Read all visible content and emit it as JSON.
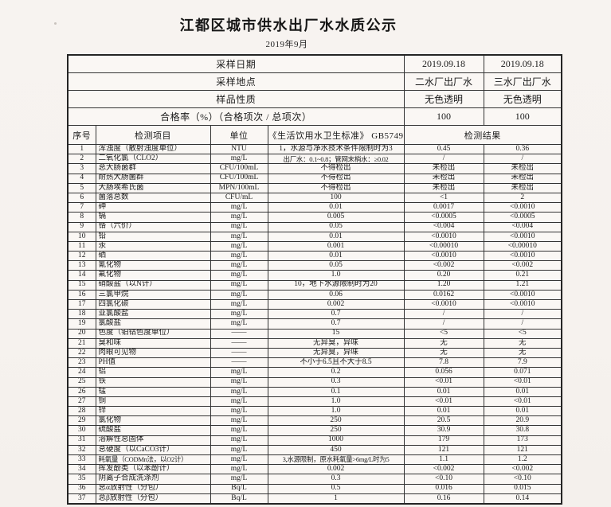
{
  "page": {
    "title": "江都区城市供水出厂水水质公示",
    "subtitle": "2019年9月"
  },
  "colors": {
    "paper": "#f6f2ee",
    "ink": "#1b1b1b",
    "border": "#343434"
  },
  "table": {
    "info_rows": [
      {
        "label": "采样日期",
        "plant2": "2019.09.18",
        "plant3": "2019.09.18"
      },
      {
        "label": "采样地点",
        "plant2": "二水厂出厂水",
        "plant3": "三水厂出厂水"
      },
      {
        "label": "样品性质",
        "plant2": "无色透明",
        "plant3": "无色透明"
      },
      {
        "label": "合格率（%）（合格项次 / 总项次）",
        "plant2": "100",
        "plant3": "100"
      }
    ],
    "columns": {
      "index": "序号",
      "item": "检测项目",
      "unit": "单位",
      "standard": "《生活饮用水卫生标准》 GB5749",
      "result": "检测结果"
    },
    "rows": [
      [
        "1",
        "浑浊度（散射浊度单位）",
        "NTU",
        "1，水源与净水技术条件限制时为3",
        "0.45",
        "0.36"
      ],
      [
        "2",
        "二氧化氯（CLO2）",
        "mg/L",
        "出厂水：0.1~0.8；管网末梢水：≥0.02",
        "/",
        "/"
      ],
      [
        "3",
        "总大肠菌群",
        "CFU/100mL",
        "不得检出",
        "未检出",
        "未检出"
      ],
      [
        "4",
        "耐热大肠菌群",
        "CFU/100mL",
        "不得检出",
        "未检出",
        "未检出"
      ],
      [
        "5",
        "大肠埃希氏菌",
        "MPN/100mL",
        "不得检出",
        "未检出",
        "未检出"
      ],
      [
        "6",
        "菌落总数",
        "CFU/mL",
        "100",
        "<1",
        "2"
      ],
      [
        "7",
        "砷",
        "mg/L",
        "0.01",
        "0.0017",
        "<0.0010"
      ],
      [
        "8",
        "镉",
        "mg/L",
        "0.005",
        "<0.0005",
        "<0.0005"
      ],
      [
        "9",
        "铬（六价）",
        "mg/L",
        "0.05",
        "<0.004",
        "<0.004"
      ],
      [
        "10",
        "铅",
        "mg/L",
        "0.01",
        "<0.0010",
        "<0.0010"
      ],
      [
        "11",
        "汞",
        "mg/L",
        "0.001",
        "<0.00010",
        "<0.00010"
      ],
      [
        "12",
        "硒",
        "mg/L",
        "0.01",
        "<0.0010",
        "<0.0010"
      ],
      [
        "13",
        "氰化物",
        "mg/L",
        "0.05",
        "<0.002",
        "<0.002"
      ],
      [
        "14",
        "氟化物",
        "mg/L",
        "1.0",
        "0.20",
        "0.21"
      ],
      [
        "15",
        "硝酸盐（以N计）",
        "mg/L",
        "10，地下水源限制时为20",
        "1.20",
        "1.21"
      ],
      [
        "16",
        "三氯甲烷",
        "mg/L",
        "0.06",
        "0.0162",
        "<0.0010"
      ],
      [
        "17",
        "四氯化碳",
        "mg/L",
        "0.002",
        "<0.0010",
        "<0.0010"
      ],
      [
        "18",
        "亚氯酸盐",
        "mg/L",
        "0.7",
        "/",
        "/"
      ],
      [
        "19",
        "氯酸盐",
        "mg/L",
        "0.7",
        "/",
        "/"
      ],
      [
        "20",
        "色度（铂钴色度单位）",
        "——",
        "15",
        "<5",
        "<5"
      ],
      [
        "21",
        "臭和味",
        "——",
        "无异臭，异味",
        "无",
        "无"
      ],
      [
        "22",
        "肉眼可见物",
        "——",
        "无异臭，异味",
        "无",
        "无"
      ],
      [
        "23",
        "PH值",
        "——",
        "不小于6.5且不大于8.5",
        "7.8",
        "7.9"
      ],
      [
        "24",
        "铝",
        "mg/L",
        "0.2",
        "0.056",
        "0.071"
      ],
      [
        "25",
        "铁",
        "mg/L",
        "0.3",
        "<0.01",
        "<0.01"
      ],
      [
        "26",
        "锰",
        "mg/L",
        "0.1",
        "0.01",
        "0.01"
      ],
      [
        "27",
        "铜",
        "mg/L",
        "1.0",
        "<0.01",
        "<0.01"
      ],
      [
        "28",
        "锌",
        "mg/L",
        "1.0",
        "0.01",
        "0.01"
      ],
      [
        "29",
        "氯化物",
        "mg/L",
        "250",
        "20.5",
        "20.9"
      ],
      [
        "30",
        "硫酸盐",
        "mg/L",
        "250",
        "30.9",
        "30.8"
      ],
      [
        "31",
        "溶解性总固体",
        "mg/L",
        "1000",
        "179",
        "173"
      ],
      [
        "32",
        "总硬度（以CaCO3计）",
        "mg/L",
        "450",
        "121",
        "121"
      ],
      [
        "33",
        "耗氧量（CODMn法，以O2计）",
        "mg/L",
        "3,水源限制，原水耗氧量>6mg/L时为5",
        "1.1",
        "1.2"
      ],
      [
        "34",
        "挥发酚类（以苯酚计）",
        "mg/L",
        "0.002",
        "<0.002",
        "<0.002"
      ],
      [
        "35",
        "阴离子合成洗涤剂",
        "mg/L",
        "0.3",
        "<0.10",
        "<0.10"
      ],
      [
        "36",
        "总α放射性（分包）",
        "Bq/L",
        "0.5",
        "0.016",
        "0.015"
      ],
      [
        "37",
        "总β放射性（分包）",
        "Bq/L",
        "1",
        "0.16",
        "0.14"
      ]
    ]
  }
}
